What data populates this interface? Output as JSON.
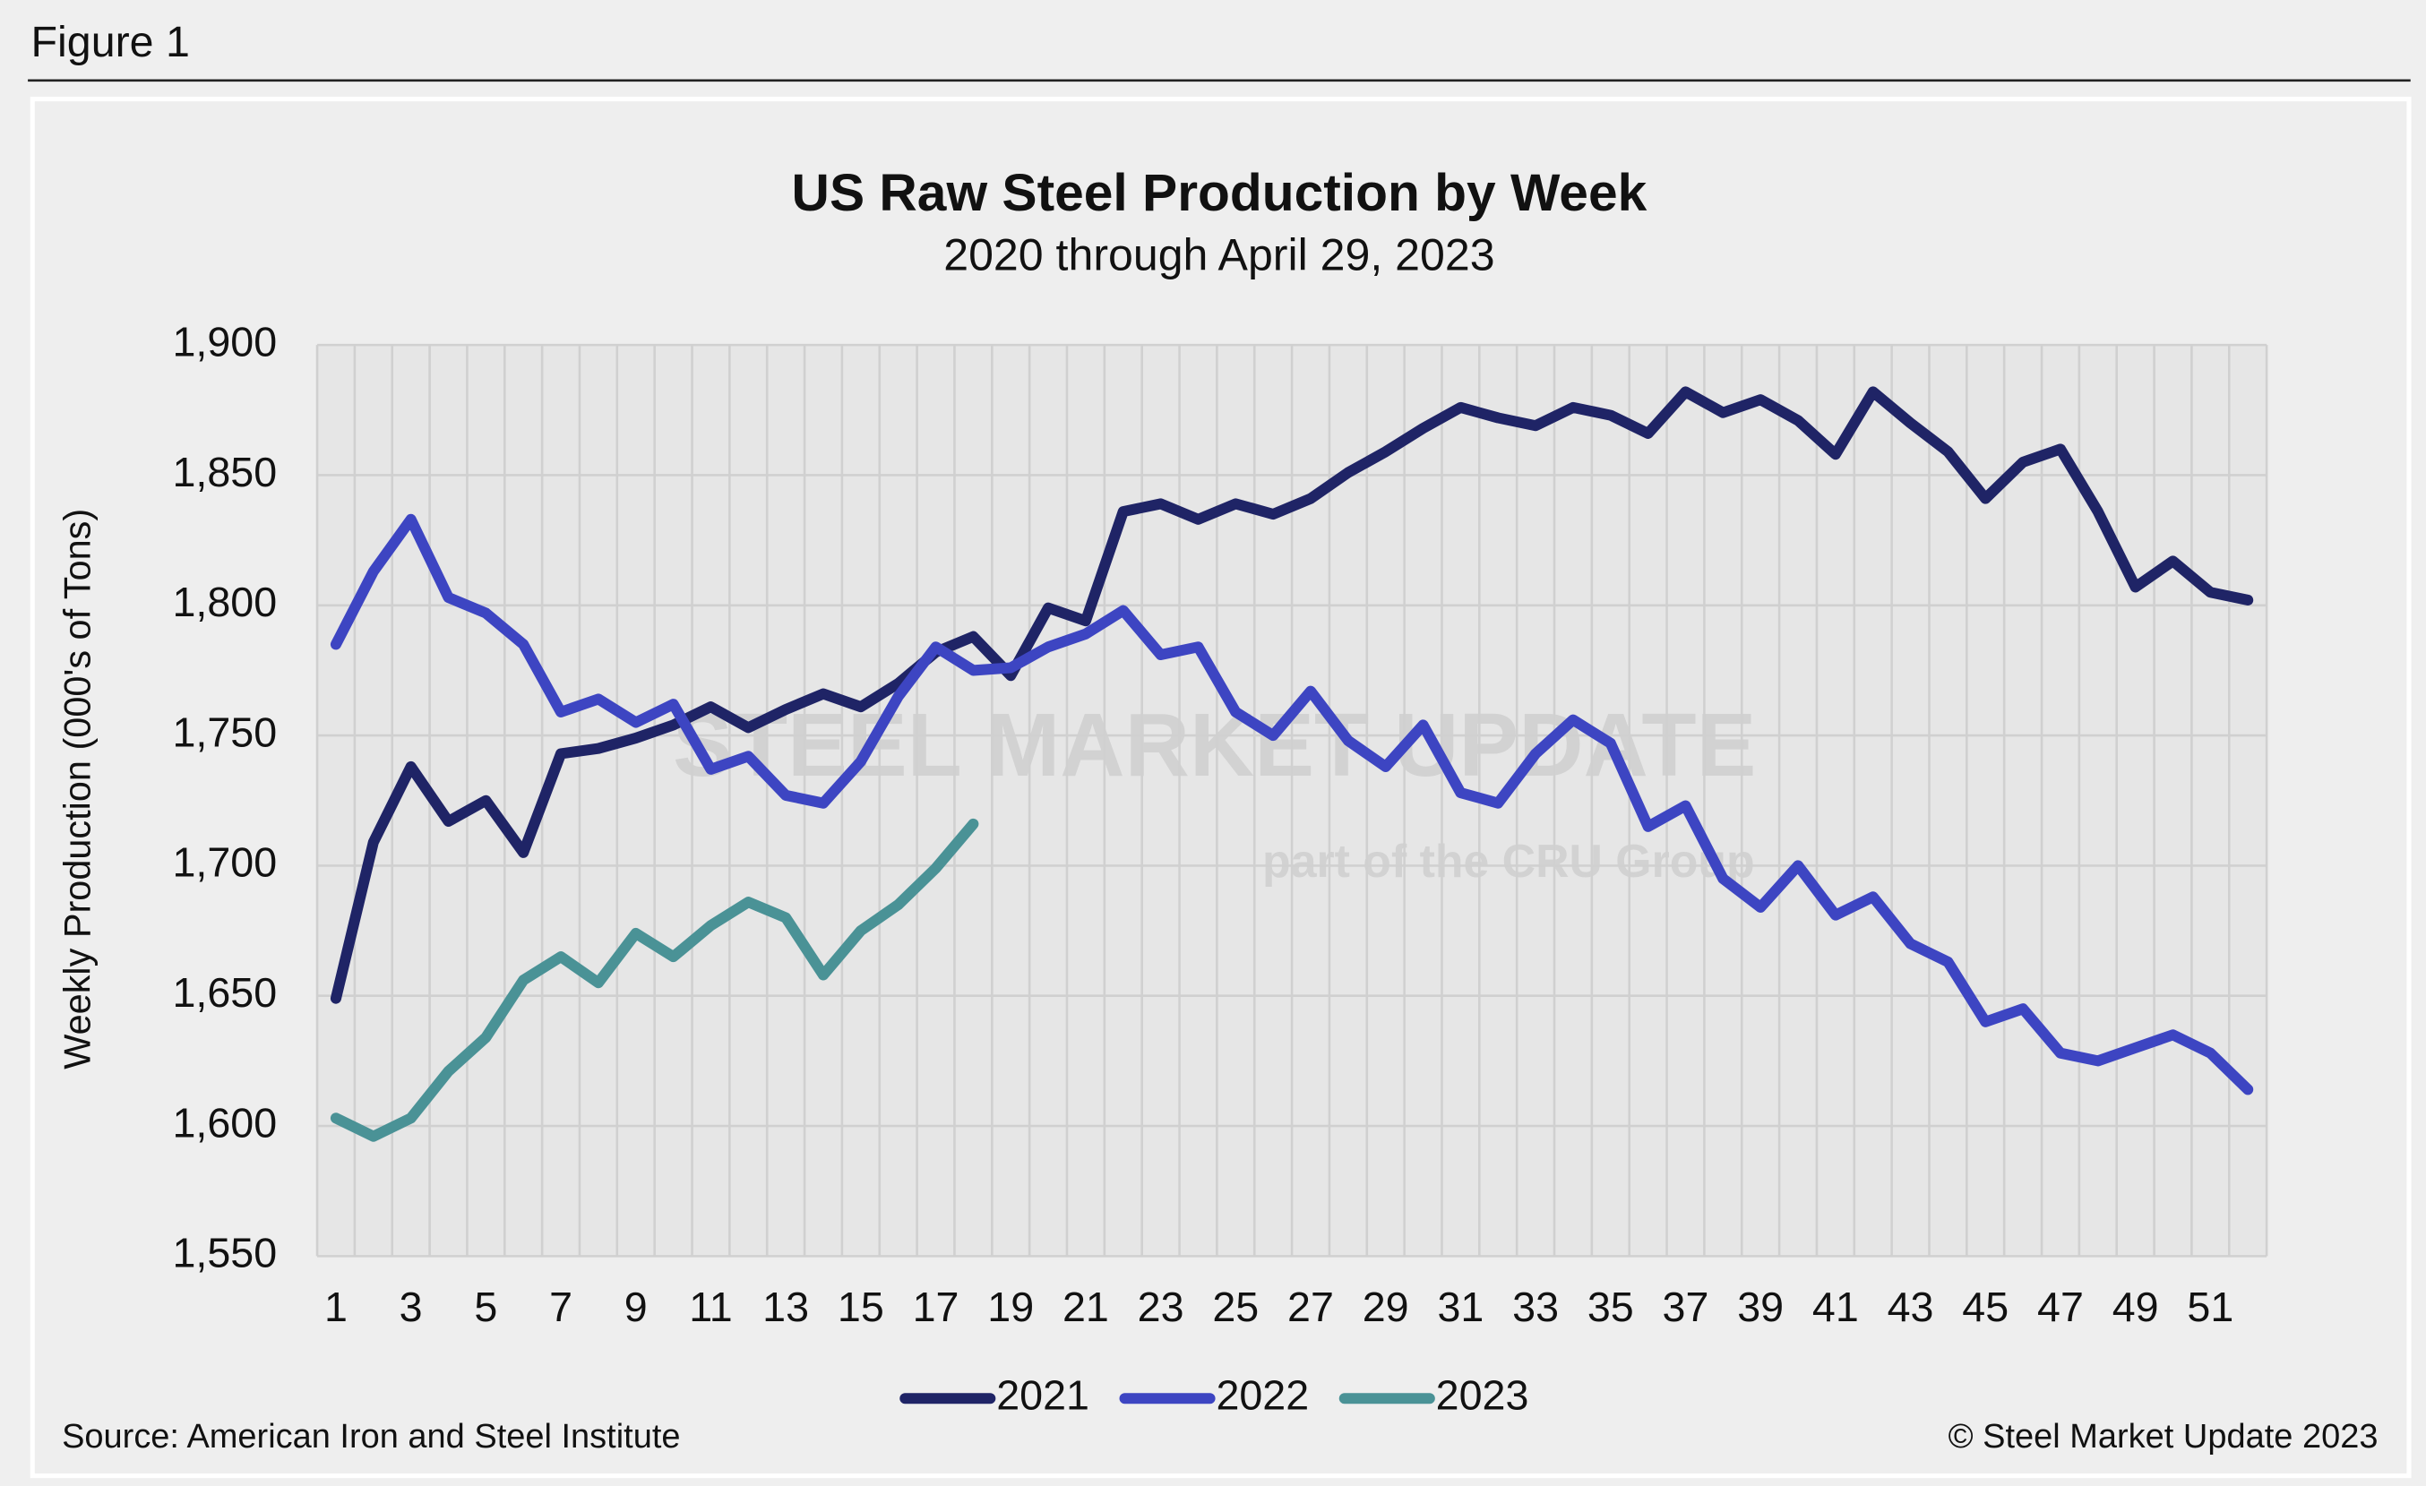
{
  "chart_data": {
    "type": "line",
    "figure_label": "Figure 1",
    "title": "US Raw Steel Production by Week",
    "subtitle": "2020 through April 29, 2023",
    "y_label": "Weekly Production (000's of Tons)",
    "source": "Source: American Iron and Steel Institute",
    "copyright": "© Steel Market Update 2023",
    "watermark": [
      "STEEL MARKET UPDATE",
      "part of the CRU Group"
    ],
    "categories": [
      1,
      null,
      3,
      null,
      5,
      null,
      7,
      null,
      9,
      null,
      11,
      null,
      13,
      null,
      15,
      null,
      17,
      null,
      19,
      null,
      21,
      null,
      23,
      null,
      25,
      null,
      27,
      null,
      29,
      null,
      31,
      null,
      33,
      null,
      35,
      null,
      37,
      null,
      39,
      null,
      41,
      null,
      43,
      null,
      45,
      null,
      47,
      null,
      49,
      null,
      51,
      null
    ],
    "series": [
      {
        "name": "2021",
        "color": "#1f2466",
        "values": [
          1649,
          1709,
          1738,
          1717,
          1725,
          1705,
          1743,
          1745,
          1749,
          1754,
          1761,
          1753,
          1760,
          1766,
          1761,
          1770,
          1782,
          1788,
          1773,
          1799,
          1794,
          1836,
          1839,
          1833,
          1839,
          1835,
          1841,
          1851,
          1859,
          1868,
          1876,
          1872,
          1869,
          1876,
          1873,
          1866,
          1882,
          1874,
          1879,
          1871,
          1858,
          1882,
          1870,
          1859,
          1841,
          1855,
          1860,
          1836,
          1807,
          1817,
          1805,
          1802
        ]
      },
      {
        "name": "2022",
        "color": "#3d45c2",
        "values": [
          1785,
          1813,
          1833,
          1803,
          1797,
          1785,
          1759,
          1764,
          1755,
          1762,
          1737,
          1742,
          1727,
          1724,
          1740,
          1765,
          1784,
          1775,
          1776,
          1784,
          1789,
          1798,
          1781,
          1784,
          1759,
          1750,
          1767,
          1748,
          1738,
          1754,
          1728,
          1724,
          1743,
          1756,
          1747,
          1715,
          1723,
          1695,
          1684,
          1700,
          1681,
          1688,
          1670,
          1663,
          1640,
          1645,
          1628,
          1625,
          1630,
          1635,
          1628,
          1614
        ]
      },
      {
        "name": "2023",
        "color": "#4a9296",
        "values": [
          1603,
          1596,
          1603,
          1621,
          1634,
          1656,
          1665,
          1655,
          1674,
          1665,
          1677,
          1686,
          1680,
          1658,
          1675,
          1685,
          1699,
          1716,
          null,
          null,
          null,
          null,
          null,
          null,
          null,
          null,
          null,
          null,
          null,
          null,
          null,
          null,
          null,
          null,
          null,
          null,
          null,
          null,
          null,
          null,
          null,
          null,
          null,
          null,
          null,
          null,
          null,
          null,
          null,
          null,
          null,
          null
        ]
      }
    ],
    "ylim": [
      1550,
      1900
    ],
    "yticks": [
      {
        "value": 1550,
        "label": "1,550"
      },
      {
        "value": 1600,
        "label": "1,600"
      },
      {
        "value": 1650,
        "label": "1,650"
      },
      {
        "value": 1700,
        "label": "1,700"
      },
      {
        "value": 1750,
        "label": "1,750"
      },
      {
        "value": 1800,
        "label": "1,800"
      },
      {
        "value": 1850,
        "label": "1,850"
      },
      {
        "value": 1900,
        "label": "1,900"
      }
    ],
    "grid": true,
    "legend": "bottom"
  }
}
